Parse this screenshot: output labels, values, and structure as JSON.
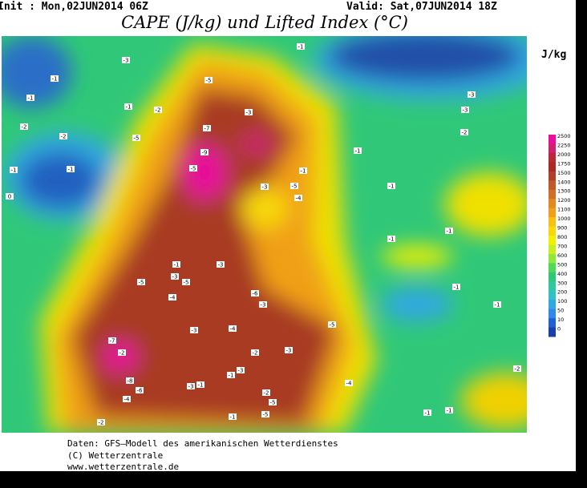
{
  "header": {
    "init": "Init : Mon,02JUN2014 06Z",
    "valid": "Valid: Sat,07JUN2014 18Z",
    "title": "CAPE (J/kg) und Lifted Index (°C)"
  },
  "legend": {
    "unit": "J/kg",
    "levels": [
      "2500",
      "2250",
      "2000",
      "1750",
      "1500",
      "1400",
      "1300",
      "1200",
      "1100",
      "1000",
      "900",
      "800",
      "700",
      "600",
      "500",
      "400",
      "300",
      "200",
      "100",
      "50",
      "10",
      "0"
    ],
    "colors": [
      "#e8109a",
      "#d02070",
      "#b82838",
      "#a82a22",
      "#b0402a",
      "#c05a2a",
      "#d07028",
      "#e08a20",
      "#f0a018",
      "#f8c010",
      "#f8d808",
      "#f0f000",
      "#c8f020",
      "#90e838",
      "#50d858",
      "#30c878",
      "#30c8a0",
      "#30c0c8",
      "#30a8e0",
      "#3088e8",
      "#2060d0",
      "#1840a8"
    ]
  },
  "lifted_index_labels": [
    "-3",
    "-1",
    "-1",
    "-5",
    "-1",
    "-2",
    "-3",
    "-1",
    "-2",
    "-2",
    "-5",
    "-7",
    "-9",
    "-5",
    "-1",
    "-1",
    "0",
    "-1",
    "-1",
    "-3",
    "-5",
    "-4",
    "-1",
    "-3",
    "-3",
    "-2",
    "-1",
    "-1",
    "-1",
    "-3",
    "-3",
    "-5",
    "-5",
    "-4",
    "-6",
    "-1",
    "-1",
    "-3",
    "-3",
    "-7",
    "-2",
    "-4",
    "-5",
    "-2",
    "-3",
    "-3",
    "-1",
    "-1",
    "-8",
    "-6",
    "-4",
    "-3",
    "-2",
    "-5",
    "-4",
    "-1",
    "-1",
    "-2",
    "-1",
    "-5",
    "-2"
  ],
  "footer": {
    "lines": [
      "Daten: GFS–Modell des amerikanischen Wetterdienstes",
      "(C) Wetterzentrale",
      "www.wetterzentrale.de"
    ]
  }
}
